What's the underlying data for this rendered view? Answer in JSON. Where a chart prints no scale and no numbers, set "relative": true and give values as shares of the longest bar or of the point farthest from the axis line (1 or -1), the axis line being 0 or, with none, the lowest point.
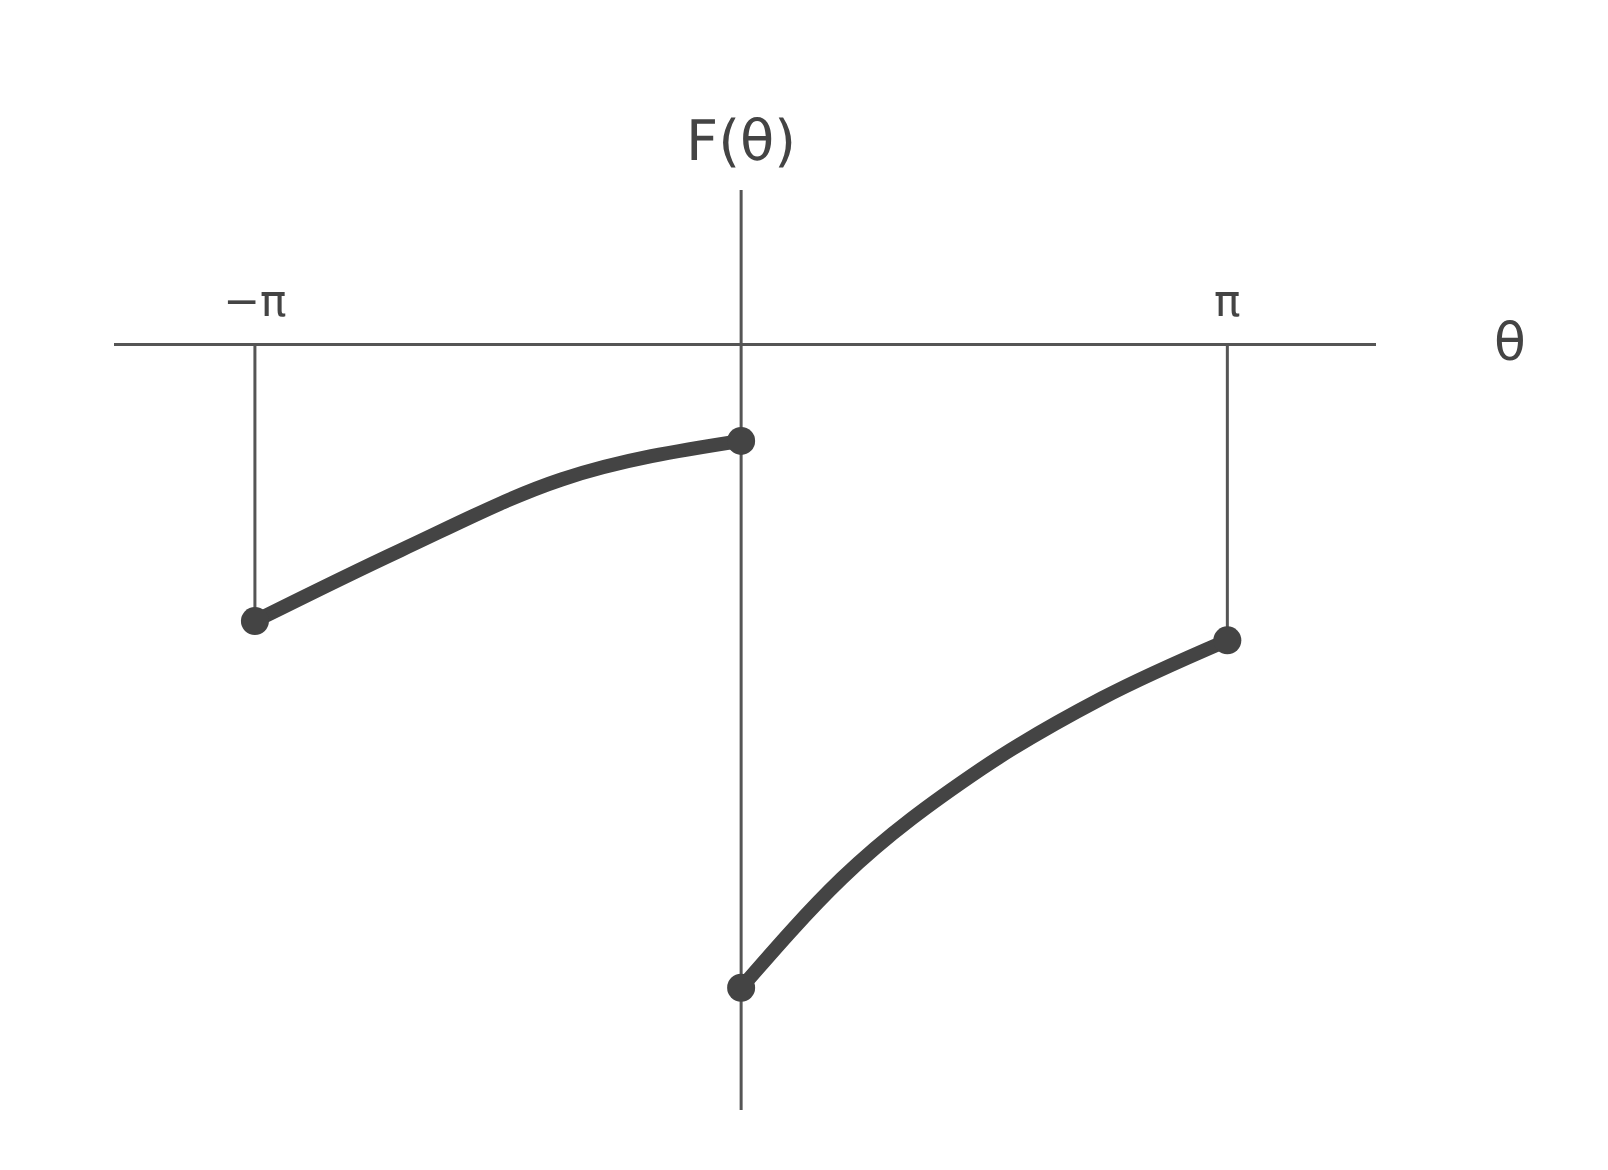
{
  "chart_data": {
    "type": "line",
    "relative": true,
    "xlabel": "θ",
    "ylabel": "F(θ)",
    "xlim": [
      -4.05,
      4.1
    ],
    "xticks": [
      {
        "value": -3.14,
        "label": "−π"
      },
      {
        "value": 3.14,
        "label": "π"
      }
    ],
    "tick_labels": "x",
    "grid": false,
    "marker": "none",
    "line_style": "solid",
    "series": [
      {
        "color": "#444444",
        "x": [
          -3.14,
          -2.2,
          -1.16,
          0
        ],
        "values": [
          -0.43,
          -0.32,
          -0.21,
          -0.15
        ]
      },
      {
        "color": "#444444",
        "x": [
          0,
          0.65,
          1.55,
          2.33,
          3.14
        ],
        "values": [
          -1,
          -0.83,
          -0.66,
          -0.55,
          -0.46
        ]
      },
      {
        "type": "scatter",
        "marker": "circle",
        "color": "#444444",
        "x": [
          -3.14,
          0,
          0,
          3.14
        ],
        "values": [
          -0.43,
          -0.15,
          -1,
          -0.46
        ]
      }
    ],
    "ref_lines": [
      {
        "axis": "x",
        "value": -3.14,
        "color": "#555555"
      },
      {
        "axis": "x",
        "value": 3.14,
        "color": "#555555"
      }
    ]
  }
}
